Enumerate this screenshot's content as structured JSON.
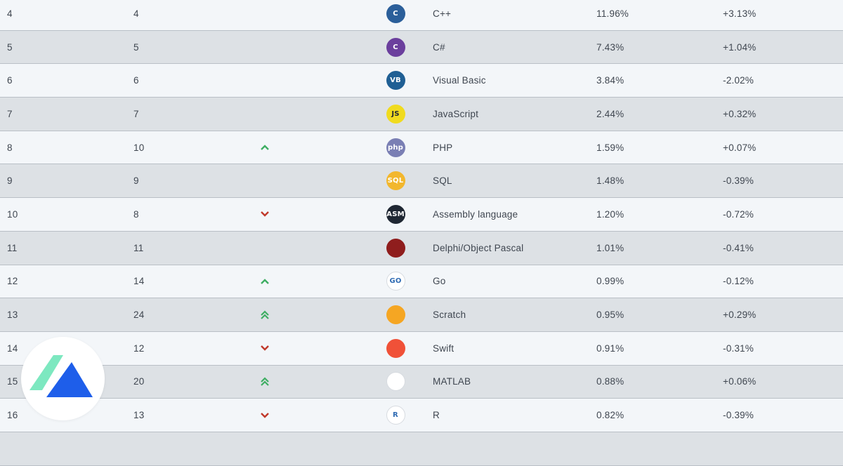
{
  "colors": {
    "up": "#3fae63",
    "down": "#c0392b",
    "row_light": "#f3f6f9",
    "row_dark": "#dde1e5"
  },
  "rows": [
    {
      "rank": "4",
      "prev": "4",
      "change": "none",
      "icon": "cpp-icon",
      "logo_text": "C",
      "logo_bg": "#2b5f9a",
      "language": "C++",
      "rating": "11.96%",
      "delta": "+3.13%"
    },
    {
      "rank": "5",
      "prev": "5",
      "change": "none",
      "icon": "csharp-icon",
      "logo_text": "C",
      "logo_bg": "#6b3f9d",
      "language": "C#",
      "rating": "7.43%",
      "delta": "+1.04%"
    },
    {
      "rank": "6",
      "prev": "6",
      "change": "none",
      "icon": "visual-basic-icon",
      "logo_text": "VB",
      "logo_bg": "#1f5f94",
      "language": "Visual Basic",
      "rating": "3.84%",
      "delta": "-2.02%"
    },
    {
      "rank": "7",
      "prev": "7",
      "change": "none",
      "icon": "javascript-icon",
      "logo_text": "JS",
      "logo_bg": "#f0db1f",
      "language": "JavaScript",
      "rating": "2.44%",
      "delta": "+0.32%"
    },
    {
      "rank": "8",
      "prev": "10",
      "change": "up",
      "icon": "php-icon",
      "logo_text": "php",
      "logo_bg": "#7a7fb4",
      "language": "PHP",
      "rating": "1.59%",
      "delta": "+0.07%"
    },
    {
      "rank": "9",
      "prev": "9",
      "change": "none",
      "icon": "sql-icon",
      "logo_text": "SQL",
      "logo_bg": "#f2b72e",
      "language": "SQL",
      "rating": "1.48%",
      "delta": "-0.39%"
    },
    {
      "rank": "10",
      "prev": "8",
      "change": "down",
      "icon": "assembly-icon",
      "logo_text": "ASM",
      "logo_bg": "#1f2733",
      "language": "Assembly language",
      "rating": "1.20%",
      "delta": "-0.72%"
    },
    {
      "rank": "11",
      "prev": "11",
      "change": "none",
      "icon": "delphi-icon",
      "logo_text": "",
      "logo_bg": "#8f1d1d",
      "language": "Delphi/Object Pascal",
      "rating": "1.01%",
      "delta": "-0.41%"
    },
    {
      "rank": "12",
      "prev": "14",
      "change": "up",
      "icon": "go-icon",
      "logo_text": "GO",
      "logo_bg": "#ffffff",
      "language": "Go",
      "rating": "0.99%",
      "delta": "-0.12%"
    },
    {
      "rank": "13",
      "prev": "24",
      "change": "double-up",
      "icon": "scratch-icon",
      "logo_text": "",
      "logo_bg": "#f5a623",
      "language": "Scratch",
      "rating": "0.95%",
      "delta": "+0.29%"
    },
    {
      "rank": "14",
      "prev": "12",
      "change": "down",
      "icon": "swift-icon",
      "logo_text": "",
      "logo_bg": "#f05138",
      "language": "Swift",
      "rating": "0.91%",
      "delta": "-0.31%"
    },
    {
      "rank": "15",
      "prev": "20",
      "change": "double-up",
      "icon": "matlab-icon",
      "logo_text": "",
      "logo_bg": "#ffffff",
      "language": "MATLAB",
      "rating": "0.88%",
      "delta": "+0.06%"
    },
    {
      "rank": "16",
      "prev": "13",
      "change": "down",
      "icon": "r-icon",
      "logo_text": "R",
      "logo_bg": "#ffffff",
      "language": "R",
      "rating": "0.82%",
      "delta": "-0.39%"
    },
    {
      "rank": "",
      "prev": "",
      "change": "none",
      "icon": "partial-row-icon",
      "logo_text": "",
      "logo_bg": "#ffffff",
      "language": "",
      "rating": "",
      "delta": ""
    }
  ],
  "brand_badge": {
    "icon": "brand-logo-icon",
    "colors": [
      "#7de8c0",
      "#1e5eea"
    ]
  }
}
